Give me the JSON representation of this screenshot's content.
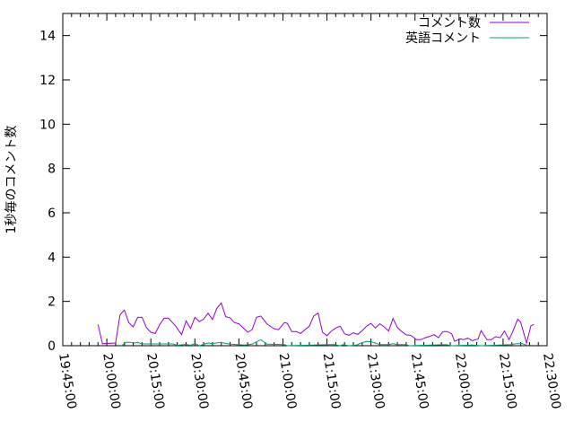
{
  "chart_data": {
    "type": "line",
    "title": "",
    "xlabel": "",
    "ylabel": "1秒毎のコメント数",
    "xlim": [
      "19:45:00",
      "22:30:00"
    ],
    "ylim": [
      0,
      15
    ],
    "x_ticks": [
      "19:45:00",
      "20:00:00",
      "20:15:00",
      "20:30:00",
      "20:45:00",
      "21:00:00",
      "21:15:00",
      "21:30:00",
      "21:45:00",
      "22:00:00",
      "22:15:00",
      "22:30:00"
    ],
    "y_ticks": [
      "0",
      "2",
      "4",
      "6",
      "8",
      "10",
      "12",
      "14"
    ],
    "grid": false,
    "legend_position": "top-right",
    "series": [
      {
        "name": "コメント数",
        "color": "#9400d3",
        "points": [
          [
            "19:57:00",
            0.96
          ],
          [
            "19:58:30",
            0.09
          ],
          [
            "20:03:00",
            0.12
          ],
          [
            "20:04:30",
            1.39
          ],
          [
            "20:06:00",
            1.61
          ],
          [
            "20:07:30",
            1.04
          ],
          [
            "20:09:00",
            0.85
          ],
          [
            "20:10:30",
            1.28
          ],
          [
            "20:12:00",
            1.28
          ],
          [
            "20:13:30",
            0.81
          ],
          [
            "20:15:00",
            0.61
          ],
          [
            "20:16:30",
            0.55
          ],
          [
            "20:18:00",
            0.95
          ],
          [
            "20:19:30",
            1.24
          ],
          [
            "20:21:00",
            1.24
          ],
          [
            "20:23:30",
            0.88
          ],
          [
            "20:25:30",
            0.5
          ],
          [
            "20:27:00",
            1.12
          ],
          [
            "20:28:30",
            0.77
          ],
          [
            "20:30:00",
            1.28
          ],
          [
            "20:31:30",
            1.09
          ],
          [
            "20:33:00",
            1.2
          ],
          [
            "20:34:30",
            1.47
          ],
          [
            "20:36:00",
            1.18
          ],
          [
            "20:37:30",
            1.69
          ],
          [
            "20:39:00",
            1.93
          ],
          [
            "20:40:30",
            1.31
          ],
          [
            "20:42:00",
            1.26
          ],
          [
            "20:43:30",
            1.04
          ],
          [
            "20:45:00",
            0.99
          ],
          [
            "20:48:00",
            0.61
          ],
          [
            "20:49:30",
            0.72
          ],
          [
            "20:51:00",
            1.28
          ],
          [
            "20:52:30",
            1.34
          ],
          [
            "20:54:30",
            0.99
          ],
          [
            "20:56:00",
            0.85
          ],
          [
            "20:57:00",
            0.77
          ],
          [
            "20:58:30",
            0.72
          ],
          [
            "21:00:30",
            1.04
          ],
          [
            "21:01:30",
            1.01
          ],
          [
            "21:03:00",
            0.64
          ],
          [
            "21:04:30",
            0.64
          ],
          [
            "21:06:00",
            0.55
          ],
          [
            "21:07:30",
            0.72
          ],
          [
            "21:09:00",
            0.88
          ],
          [
            "21:10:30",
            1.34
          ],
          [
            "21:12:00",
            1.47
          ],
          [
            "21:13:30",
            0.61
          ],
          [
            "21:15:00",
            0.45
          ],
          [
            "21:16:30",
            0.66
          ],
          [
            "21:18:00",
            0.8
          ],
          [
            "21:19:30",
            0.88
          ],
          [
            "21:21:00",
            0.54
          ],
          [
            "21:22:30",
            0.47
          ],
          [
            "21:24:00",
            0.58
          ],
          [
            "21:25:30",
            0.51
          ],
          [
            "21:27:00",
            0.68
          ],
          [
            "21:28:30",
            0.88
          ],
          [
            "21:30:00",
            1.01
          ],
          [
            "21:31:30",
            0.8
          ],
          [
            "21:33:00",
            0.99
          ],
          [
            "21:34:30",
            0.85
          ],
          [
            "21:36:00",
            0.66
          ],
          [
            "21:37:30",
            1.23
          ],
          [
            "21:39:00",
            0.82
          ],
          [
            "21:40:30",
            0.64
          ],
          [
            "21:42:00",
            0.49
          ],
          [
            "21:43:30",
            0.47
          ],
          [
            "21:45:30",
            0.27
          ],
          [
            "21:47:00",
            0.27
          ],
          [
            "21:48:30",
            0.36
          ],
          [
            "21:50:00",
            0.42
          ],
          [
            "21:51:30",
            0.5
          ],
          [
            "21:53:00",
            0.36
          ],
          [
            "21:54:30",
            0.64
          ],
          [
            "21:56:00",
            0.64
          ],
          [
            "21:57:30",
            0.54
          ],
          [
            "21:58:30",
            0.2
          ],
          [
            "22:00:30",
            0.31
          ],
          [
            "22:01:30",
            0.27
          ],
          [
            "22:03:00",
            0.34
          ],
          [
            "22:04:30",
            0.23
          ],
          [
            "22:06:30",
            0.3
          ],
          [
            "22:07:30",
            0.68
          ],
          [
            "22:09:30",
            0.27
          ],
          [
            "22:11:00",
            0.27
          ],
          [
            "22:12:30",
            0.41
          ],
          [
            "22:14:00",
            0.36
          ],
          [
            "22:15:30",
            0.66
          ],
          [
            "22:17:00",
            0.27
          ],
          [
            "22:18:00",
            0.54
          ],
          [
            "22:20:00",
            1.2
          ],
          [
            "22:21:00",
            1.07
          ],
          [
            "22:23:00",
            0.12
          ],
          [
            "22:24:30",
            0.9
          ],
          [
            "22:25:30",
            0.96
          ]
        ]
      },
      {
        "name": "英語コメント",
        "color": "#009e73",
        "points": [
          [
            "20:05:00",
            0
          ],
          [
            "20:06:30",
            0.15
          ],
          [
            "20:08:00",
            0.15
          ],
          [
            "20:09:30",
            0.12
          ],
          [
            "20:10:30",
            0.15
          ],
          [
            "20:12:00",
            0.08
          ],
          [
            "20:17:00",
            0.08
          ],
          [
            "20:22:30",
            0.08
          ],
          [
            "20:24:00",
            0.02
          ],
          [
            "20:27:00",
            0.06
          ],
          [
            "20:28:30",
            0.02
          ],
          [
            "20:30:00",
            0.1
          ],
          [
            "20:31:30",
            0
          ],
          [
            "20:34:30",
            0.12
          ],
          [
            "20:36:00",
            0.1
          ],
          [
            "20:39:00",
            0.15
          ],
          [
            "20:40:30",
            0.1
          ],
          [
            "20:42:00",
            0.07
          ],
          [
            "20:47:00",
            0.03
          ],
          [
            "20:49:30",
            0.07
          ],
          [
            "20:52:30",
            0.27
          ],
          [
            "20:54:30",
            0.07
          ],
          [
            "21:00:30",
            0.05
          ],
          [
            "21:01:30",
            0
          ],
          [
            "21:15:30",
            0.05
          ],
          [
            "21:17:30",
            0.05
          ],
          [
            "21:19:30",
            0
          ],
          [
            "21:20:30",
            0.05
          ],
          [
            "21:22:30",
            0
          ],
          [
            "21:25:00",
            0.03
          ],
          [
            "21:27:00",
            0.14
          ],
          [
            "21:28:30",
            0.19
          ],
          [
            "21:30:00",
            0.18
          ],
          [
            "21:31:30",
            0.12
          ],
          [
            "21:33:00",
            0.05
          ],
          [
            "21:36:00",
            0.05
          ],
          [
            "21:37:30",
            0.09
          ],
          [
            "21:39:00",
            0.05
          ],
          [
            "21:42:00",
            0.05
          ],
          [
            "21:43:00",
            0
          ],
          [
            "21:55:30",
            0.05
          ],
          [
            "21:57:30",
            0
          ],
          [
            "22:04:30",
            0.03
          ],
          [
            "22:07:30",
            0
          ],
          [
            "22:17:45",
            0.05
          ],
          [
            "22:19:30",
            0.09
          ],
          [
            "22:21:30",
            0.09
          ],
          [
            "22:23:00",
            0.03
          ]
        ]
      }
    ]
  }
}
